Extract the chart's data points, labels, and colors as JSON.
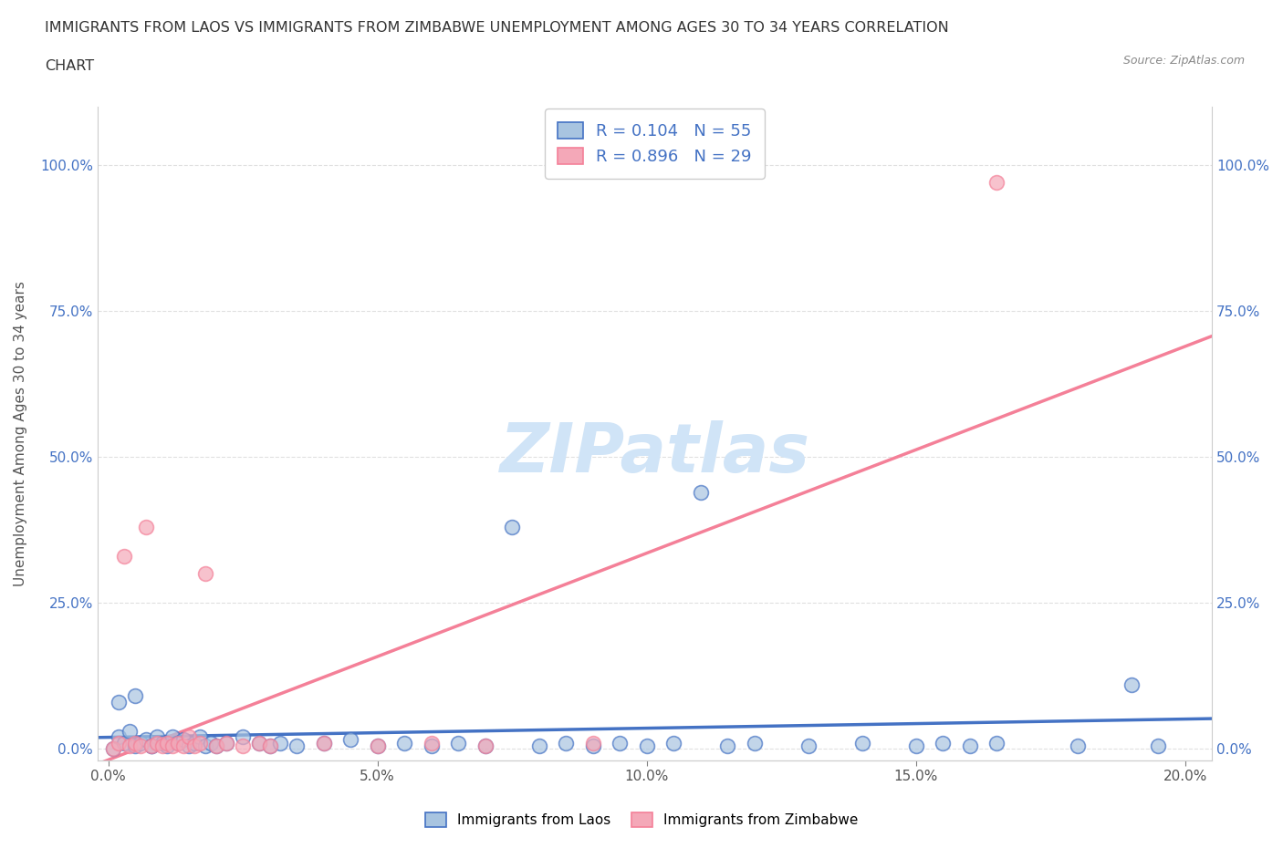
{
  "title_line1": "IMMIGRANTS FROM LAOS VS IMMIGRANTS FROM ZIMBABWE UNEMPLOYMENT AMONG AGES 30 TO 34 YEARS CORRELATION",
  "title_line2": "CHART",
  "source_text": "Source: ZipAtlas.com",
  "ylabel": "Unemployment Among Ages 30 to 34 years",
  "xlabel_ticks": [
    "0.0%",
    "5.0%",
    "10.0%",
    "15.0%",
    "20.0%"
  ],
  "xlabel_vals": [
    0.0,
    0.05,
    0.1,
    0.15,
    0.2
  ],
  "ylabel_ticks": [
    "0.0%",
    "25.0%",
    "50.0%",
    "75.0%",
    "100.0%"
  ],
  "ylabel_vals": [
    0.0,
    0.25,
    0.5,
    0.75,
    1.0
  ],
  "xlim": [
    -0.002,
    0.205
  ],
  "ylim": [
    -0.02,
    1.1
  ],
  "laos_R": 0.104,
  "laos_N": 55,
  "zimbabwe_R": 0.896,
  "zimbabwe_N": 29,
  "laos_color": "#a8c4e0",
  "zimbabwe_color": "#f4a8b8",
  "laos_line_color": "#4472c4",
  "zimbabwe_line_color": "#f48098",
  "watermark_color": "#d0e4f7",
  "laos_x": [
    0.001,
    0.002,
    0.003,
    0.004,
    0.005,
    0.006,
    0.007,
    0.008,
    0.009,
    0.01,
    0.011,
    0.012,
    0.013,
    0.014,
    0.015,
    0.016,
    0.017,
    0.018,
    0.019,
    0.02,
    0.022,
    0.025,
    0.028,
    0.03,
    0.032,
    0.035,
    0.04,
    0.045,
    0.05,
    0.055,
    0.06,
    0.065,
    0.07,
    0.075,
    0.08,
    0.085,
    0.09,
    0.095,
    0.1,
    0.105,
    0.11,
    0.115,
    0.12,
    0.13,
    0.14,
    0.15,
    0.155,
    0.16,
    0.165,
    0.18,
    0.19,
    0.195,
    0.002,
    0.005,
    0.008
  ],
  "laos_y": [
    0.0,
    0.02,
    0.01,
    0.03,
    0.005,
    0.01,
    0.015,
    0.005,
    0.02,
    0.01,
    0.005,
    0.02,
    0.01,
    0.015,
    0.005,
    0.01,
    0.02,
    0.005,
    0.01,
    0.005,
    0.01,
    0.02,
    0.01,
    0.005,
    0.01,
    0.005,
    0.01,
    0.015,
    0.005,
    0.01,
    0.005,
    0.01,
    0.005,
    0.38,
    0.005,
    0.01,
    0.005,
    0.01,
    0.005,
    0.01,
    0.44,
    0.005,
    0.01,
    0.005,
    0.01,
    0.005,
    0.01,
    0.005,
    0.01,
    0.005,
    0.11,
    0.005,
    0.08,
    0.09,
    0.005
  ],
  "zimbabwe_x": [
    0.001,
    0.002,
    0.003,
    0.004,
    0.005,
    0.006,
    0.007,
    0.008,
    0.009,
    0.01,
    0.011,
    0.012,
    0.013,
    0.014,
    0.015,
    0.016,
    0.017,
    0.018,
    0.02,
    0.022,
    0.025,
    0.028,
    0.03,
    0.04,
    0.05,
    0.06,
    0.07,
    0.09,
    0.165
  ],
  "zimbabwe_y": [
    0.0,
    0.01,
    0.33,
    0.005,
    0.01,
    0.005,
    0.38,
    0.005,
    0.01,
    0.005,
    0.01,
    0.005,
    0.01,
    0.005,
    0.02,
    0.005,
    0.01,
    0.3,
    0.005,
    0.01,
    0.005,
    0.01,
    0.005,
    0.01,
    0.005,
    0.01,
    0.005,
    0.01,
    0.97
  ]
}
